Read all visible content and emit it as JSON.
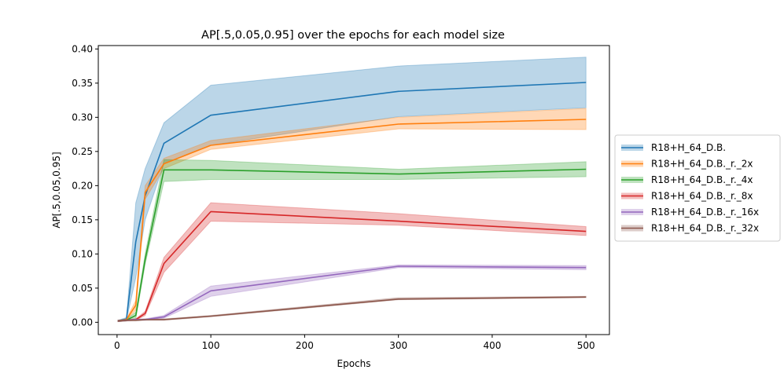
{
  "chart_data": {
    "type": "line",
    "title": "AP[.5,0.05,0.95] over the epochs for each model size",
    "xlabel": "Epochs",
    "ylabel": "AP[.5,0.05,0.95]",
    "xlim": [
      -20,
      525
    ],
    "ylim": [
      -0.018,
      0.405
    ],
    "xticks": [
      0,
      100,
      200,
      300,
      400,
      500
    ],
    "yticks": [
      0.0,
      0.05,
      0.1,
      0.15,
      0.2,
      0.25,
      0.3,
      0.35,
      0.4
    ],
    "xtick_labels": [
      "0",
      "100",
      "200",
      "300",
      "400",
      "500"
    ],
    "ytick_labels": [
      "0.00",
      "0.05",
      "0.10",
      "0.15",
      "0.20",
      "0.25",
      "0.30",
      "0.35",
      "0.40"
    ],
    "x": [
      1,
      10,
      20,
      30,
      50,
      100,
      300,
      500
    ],
    "grid": false,
    "legend_position": "center-right outside",
    "series": [
      {
        "name": "R18+H_64_D.B.",
        "color": "#1f77b4",
        "values": [
          0.002,
          0.005,
          0.118,
          0.185,
          0.262,
          0.303,
          0.338,
          0.351
        ],
        "lower": [
          0.001,
          0.003,
          0.065,
          0.15,
          0.232,
          0.259,
          0.301,
          0.314
        ],
        "upper": [
          0.003,
          0.007,
          0.175,
          0.225,
          0.292,
          0.347,
          0.375,
          0.388
        ]
      },
      {
        "name": "R18+H_64_D.B._r._2x",
        "color": "#ff7f0e",
        "values": [
          0.002,
          0.004,
          0.025,
          0.19,
          0.232,
          0.259,
          0.29,
          0.297
        ],
        "lower": [
          0.001,
          0.003,
          0.018,
          0.18,
          0.225,
          0.253,
          0.283,
          0.282
        ],
        "upper": [
          0.003,
          0.005,
          0.032,
          0.2,
          0.24,
          0.266,
          0.3,
          0.313
        ]
      },
      {
        "name": "R18+H_64_D.B._r._4x",
        "color": "#2ca02c",
        "values": [
          0.002,
          0.003,
          0.01,
          0.092,
          0.223,
          0.223,
          0.217,
          0.224
        ],
        "lower": [
          0.001,
          0.002,
          0.005,
          0.085,
          0.206,
          0.209,
          0.209,
          0.213
        ],
        "upper": [
          0.003,
          0.004,
          0.015,
          0.1,
          0.238,
          0.237,
          0.224,
          0.235
        ]
      },
      {
        "name": "R18+H_64_D.B._r._8x",
        "color": "#d62728",
        "values": [
          0.002,
          0.003,
          0.004,
          0.013,
          0.086,
          0.162,
          0.148,
          0.133
        ],
        "lower": [
          0.001,
          0.002,
          0.003,
          0.01,
          0.073,
          0.148,
          0.142,
          0.127
        ],
        "upper": [
          0.003,
          0.004,
          0.005,
          0.016,
          0.095,
          0.175,
          0.159,
          0.14
        ]
      },
      {
        "name": "R18+H_64_D.B._r._16x",
        "color": "#9467bd",
        "values": [
          0.002,
          0.003,
          0.004,
          0.004,
          0.008,
          0.046,
          0.082,
          0.08
        ],
        "lower": [
          0.001,
          0.002,
          0.003,
          0.003,
          0.006,
          0.038,
          0.08,
          0.077
        ],
        "upper": [
          0.003,
          0.004,
          0.005,
          0.005,
          0.01,
          0.053,
          0.084,
          0.083
        ]
      },
      {
        "name": "R18+H_64_D.B._r._32x",
        "color": "#8c564b",
        "values": [
          0.002,
          0.003,
          0.003,
          0.004,
          0.004,
          0.009,
          0.034,
          0.037
        ],
        "lower": [
          0.001,
          0.002,
          0.002,
          0.003,
          0.003,
          0.008,
          0.033,
          0.036
        ],
        "upper": [
          0.003,
          0.004,
          0.004,
          0.005,
          0.005,
          0.01,
          0.036,
          0.038
        ]
      }
    ]
  }
}
